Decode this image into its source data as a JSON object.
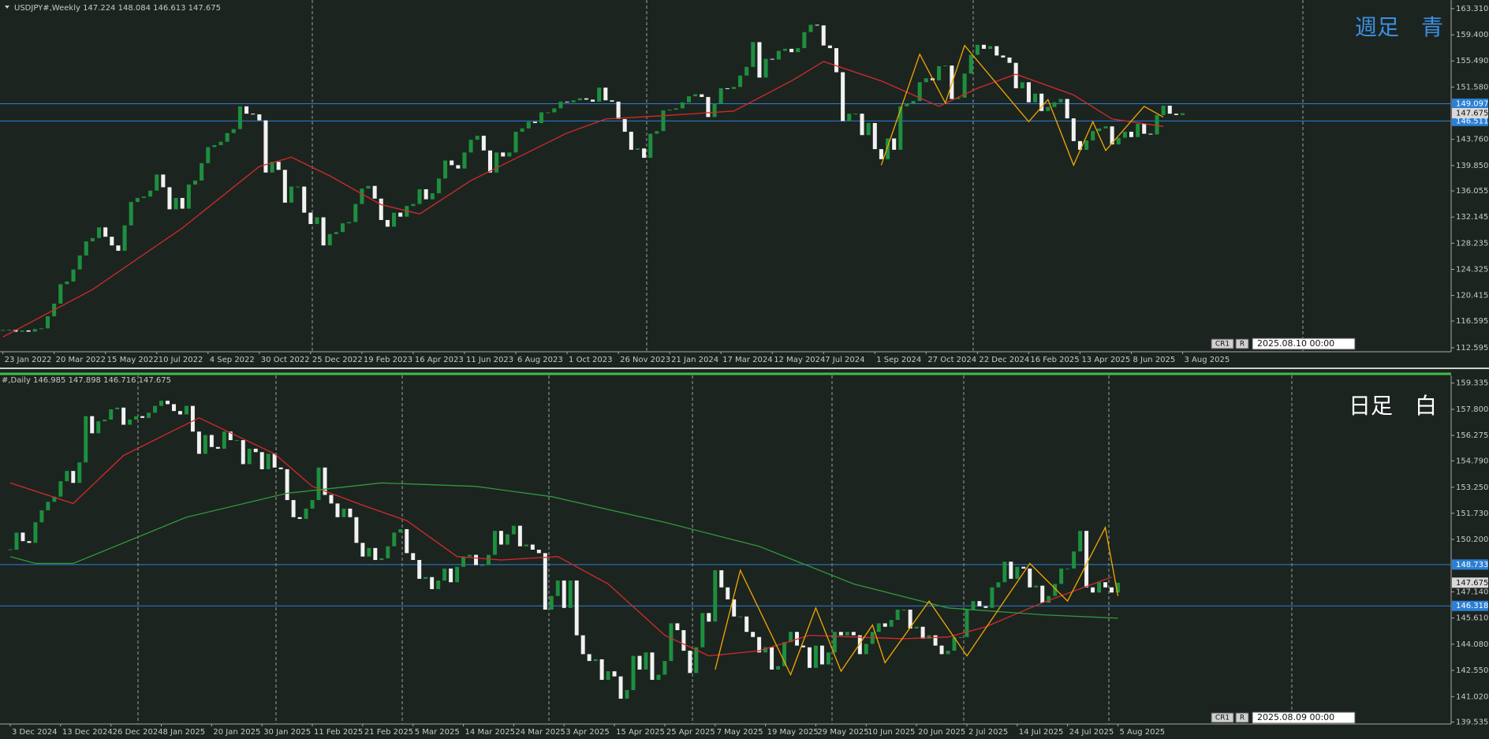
{
  "chart_data": [
    {
      "type": "candlestick",
      "title": "USDJPY#,Weekly  147.224 148.084 146.613 147.675",
      "badge": "週足　青",
      "badge_color": "#3d8fe0",
      "corner_labels": [
        "CR1",
        "R"
      ],
      "timestamp": "2025.08.10 00:00",
      "up_color": "#1d8f3e",
      "down_color": "#f2f2f2",
      "ylim": [
        112.0,
        164.6
      ],
      "yticks": [
        {
          "value": 163.31,
          "label": "163.310"
        },
        {
          "value": 159.4,
          "label": "159.400"
        },
        {
          "value": 155.49,
          "label": "155.490"
        },
        {
          "value": 151.58,
          "label": "151.580"
        },
        {
          "value": 143.76,
          "label": "143.760"
        },
        {
          "value": 139.85,
          "label": "139.850"
        },
        {
          "value": 136.055,
          "label": "136.055"
        },
        {
          "value": 132.145,
          "label": "132.145"
        },
        {
          "value": 128.235,
          "label": "128.235"
        },
        {
          "value": 124.325,
          "label": "124.325"
        },
        {
          "value": 120.415,
          "label": "120.415"
        },
        {
          "value": 116.595,
          "label": "116.595"
        },
        {
          "value": 112.595,
          "label": "112.595"
        }
      ],
      "categories": [
        "23 Jan 2022",
        null,
        null,
        null,
        null,
        null,
        null,
        null,
        "20 Mar 2022",
        null,
        null,
        null,
        null,
        null,
        null,
        null,
        "15 May 2022",
        null,
        null,
        null,
        null,
        null,
        null,
        null,
        "10 Jul 2022",
        null,
        null,
        null,
        null,
        null,
        null,
        null,
        "4 Sep 2022",
        null,
        null,
        null,
        null,
        null,
        null,
        null,
        "30 Oct 2022",
        null,
        null,
        null,
        null,
        null,
        null,
        null,
        "25 Dec 2022",
        null,
        null,
        null,
        null,
        null,
        null,
        null,
        "19 Feb 2023",
        null,
        null,
        null,
        null,
        null,
        null,
        null,
        "16 Apr 2023",
        null,
        null,
        null,
        null,
        null,
        null,
        null,
        "11 Jun 2023",
        null,
        null,
        null,
        null,
        null,
        null,
        null,
        "6 Aug 2023",
        null,
        null,
        null,
        null,
        null,
        null,
        null,
        "1 Oct 2023",
        null,
        null,
        null,
        null,
        null,
        null,
        null,
        "26 Nov 2023",
        null,
        null,
        null,
        null,
        null,
        null,
        null,
        "21 Jan 2024",
        null,
        null,
        null,
        null,
        null,
        null,
        null,
        "17 Mar 2024",
        null,
        null,
        null,
        null,
        null,
        null,
        null,
        "12 May 2024",
        null,
        null,
        null,
        null,
        null,
        null,
        null,
        "7 Jul 2024",
        null,
        null,
        null,
        null,
        null,
        null,
        null,
        "1 Sep 2024",
        null,
        null,
        null,
        null,
        null,
        null,
        null,
        "27 Oct 2024",
        null,
        null,
        null,
        null,
        null,
        null,
        null,
        "22 Dec 2024",
        null,
        null,
        null,
        null,
        null,
        null,
        null,
        "16 Feb 2025",
        null,
        null,
        null,
        null,
        null,
        null,
        null,
        "13 Apr 2025",
        null,
        null,
        null,
        null,
        null,
        null,
        null,
        "8 Jun 2025",
        null,
        null,
        null,
        null,
        null,
        null,
        null,
        "3 Aug 2025"
      ],
      "values": [
        115.2,
        115.3,
        115.0,
        115.2,
        115.0,
        115.4,
        115.5,
        117.3,
        119.2,
        122.1,
        122.5,
        124.3,
        126.4,
        128.5,
        129.0,
        130.6,
        129.2,
        127.9,
        127.1,
        130.9,
        134.4,
        135.0,
        135.2,
        136.1,
        138.5,
        136.6,
        133.3,
        135.0,
        133.4,
        137.0,
        137.6,
        140.2,
        142.6,
        142.9,
        143.4,
        144.7,
        145.3,
        148.7,
        147.6,
        147.5,
        146.6,
        138.8,
        140.4,
        139.2,
        134.3,
        136.7,
        136.7,
        132.8,
        131.1,
        132.1,
        127.9,
        129.6,
        129.9,
        131.2,
        131.4,
        134.1,
        136.4,
        136.8,
        134.9,
        131.7,
        130.7,
        132.8,
        132.2,
        133.8,
        134.1,
        136.3,
        134.8,
        135.7,
        137.9,
        140.6,
        139.9,
        139.4,
        141.8,
        143.7,
        144.3,
        142.1,
        138.8,
        141.8,
        141.2,
        141.8,
        144.9,
        145.4,
        146.4,
        146.2,
        147.8,
        147.8,
        148.4,
        149.4,
        149.3,
        149.6,
        149.9,
        149.7,
        149.4,
        151.5,
        149.6,
        149.4,
        146.8,
        144.9,
        142.2,
        142.4,
        141.0,
        144.6,
        145.0,
        148.1,
        148.2,
        148.4,
        149.3,
        150.2,
        150.5,
        150.1,
        147.1,
        149.1,
        151.4,
        151.3,
        151.6,
        153.3,
        154.6,
        158.3,
        153.0,
        155.8,
        155.7,
        157.0,
        157.3,
        156.8,
        157.4,
        159.8,
        160.9,
        160.8,
        157.8,
        157.4,
        153.8,
        146.5,
        147.6,
        147.6,
        144.4,
        146.2,
        142.3,
        140.8,
        143.9,
        142.2,
        148.7,
        149.1,
        149.5,
        152.3,
        152.9,
        152.6,
        154.7,
        154.8,
        149.8,
        150.0,
        153.6,
        156.4,
        157.9,
        157.3,
        157.7,
        156.3,
        156.0,
        155.2,
        151.4,
        152.3,
        149.3,
        150.6,
        148.0,
        148.6,
        149.3,
        149.8,
        146.9,
        143.5,
        142.2,
        143.6,
        145.0,
        145.4,
        145.7,
        143.0,
        144.0,
        144.9,
        144.1,
        146.1,
        144.6,
        144.5,
        147.4,
        148.8,
        147.6,
        147.4,
        147.675
      ],
      "lines": [
        {
          "color": "#d42a2a",
          "x": [
            0,
            14,
            28,
            40,
            45,
            51,
            59,
            65,
            73,
            88,
            94,
            103,
            114,
            123,
            128,
            137,
            146,
            152,
            158,
            167,
            173,
            181
          ],
          "values": [
            114.2,
            121.3,
            130.5,
            139.7,
            141.1,
            138.3,
            134.0,
            132.6,
            137.6,
            144.7,
            146.8,
            147.3,
            148.0,
            152.5,
            155.4,
            152.5,
            148.7,
            151.4,
            153.5,
            150.4,
            146.8,
            145.7
          ]
        },
        {
          "color": "#f5a800",
          "x": [
            137,
            143,
            147,
            150,
            160,
            163,
            167,
            170,
            172,
            178,
            181
          ],
          "values": [
            139.9,
            156.5,
            149.2,
            157.8,
            146.4,
            149.7,
            139.9,
            146.4,
            142.1,
            148.7,
            147.1
          ]
        }
      ],
      "hlines": [
        {
          "value": 149.097,
          "label": "149.097",
          "color": "#2b7fd4"
        },
        {
          "value": 146.511,
          "label": "146.511",
          "color": "#2b7fd4"
        }
      ],
      "last": {
        "value": 147.675,
        "label": "147.675"
      }
    },
    {
      "type": "candlestick",
      "title": "#,Daily  146.985 147.898 146.716 147.675",
      "badge": "日足　白",
      "badge_color": "#ffffff",
      "corner_labels": [
        "CR1",
        "R"
      ],
      "timestamp": "2025.08.09 00:00",
      "up_color": "#1d8f3e",
      "down_color": "#f2f2f2",
      "ylim": [
        139.42,
        159.78
      ],
      "yticks": [
        {
          "value": 159.335,
          "label": "159.335"
        },
        {
          "value": 157.8,
          "label": "157.800"
        },
        {
          "value": 156.275,
          "label": "156.275"
        },
        {
          "value": 154.79,
          "label": "154.790"
        },
        {
          "value": 153.25,
          "label": "153.250"
        },
        {
          "value": 151.73,
          "label": "151.730"
        },
        {
          "value": 150.2,
          "label": "150.200"
        },
        {
          "value": 147.14,
          "label": "147.140"
        },
        {
          "value": 145.61,
          "label": "145.610"
        },
        {
          "value": 144.08,
          "label": "144.080"
        },
        {
          "value": 142.55,
          "label": "142.550"
        },
        {
          "value": 141.02,
          "label": "141.020"
        },
        {
          "value": 139.535,
          "label": "139.535"
        }
      ],
      "categories": [
        "3 Dec 2024",
        null,
        null,
        null,
        null,
        null,
        null,
        null,
        "13 Dec 2024",
        null,
        null,
        null,
        null,
        null,
        null,
        null,
        "26 Dec 2024",
        null,
        null,
        null,
        null,
        null,
        null,
        null,
        "8 Jan 2025",
        null,
        null,
        null,
        null,
        null,
        null,
        null,
        "20 Jan 2025",
        null,
        null,
        null,
        null,
        null,
        null,
        null,
        "30 Jan 2025",
        null,
        null,
        null,
        null,
        null,
        null,
        null,
        "11 Feb 2025",
        null,
        null,
        null,
        null,
        null,
        null,
        null,
        "21 Feb 2025",
        null,
        null,
        null,
        null,
        null,
        null,
        null,
        "5 Mar 2025",
        null,
        null,
        null,
        null,
        null,
        null,
        null,
        "14 Mar 2025",
        null,
        null,
        null,
        null,
        null,
        null,
        null,
        "24 Mar 2025",
        null,
        null,
        null,
        null,
        null,
        null,
        null,
        "3 Apr 2025",
        null,
        null,
        null,
        null,
        null,
        null,
        null,
        "15 Apr 2025",
        null,
        null,
        null,
        null,
        null,
        null,
        null,
        "25 Apr 2025",
        null,
        null,
        null,
        null,
        null,
        null,
        null,
        "7 May 2025",
        null,
        null,
        null,
        null,
        null,
        null,
        null,
        "19 May 2025",
        null,
        null,
        null,
        null,
        null,
        null,
        null,
        "29 May 2025",
        null,
        null,
        null,
        null,
        null,
        null,
        null,
        "10 Jun 2025",
        null,
        null,
        null,
        null,
        null,
        null,
        null,
        "20 Jun 2025",
        null,
        null,
        null,
        null,
        null,
        null,
        null,
        "2 Jul 2025",
        null,
        null,
        null,
        null,
        null,
        null,
        null,
        "14 Jul 2025",
        null,
        null,
        null,
        null,
        null,
        null,
        null,
        "24 Jul 2025",
        null,
        null,
        null,
        null,
        null,
        null,
        null,
        "5 Aug 2025"
      ],
      "values": [
        149.6,
        150.6,
        150.1,
        150.0,
        151.2,
        151.9,
        152.4,
        152.7,
        153.6,
        154.2,
        153.5,
        154.7,
        157.4,
        156.4,
        157.1,
        157.2,
        157.8,
        157.9,
        156.9,
        157.2,
        157.4,
        157.3,
        157.6,
        158.0,
        158.3,
        158.1,
        157.7,
        157.5,
        158.0,
        156.5,
        155.2,
        156.3,
        155.6,
        155.5,
        156.5,
        156.0,
        156.0,
        154.6,
        155.5,
        155.3,
        154.3,
        155.2,
        154.4,
        154.3,
        152.5,
        151.5,
        151.4,
        152.0,
        152.5,
        154.4,
        152.8,
        152.3,
        151.5,
        152.0,
        151.5,
        150.0,
        149.2,
        149.7,
        149.0,
        149.1,
        149.8,
        150.6,
        150.8,
        149.4,
        149.0,
        147.9,
        148.0,
        147.3,
        147.8,
        148.5,
        147.7,
        148.6,
        149.2,
        149.3,
        148.7,
        148.7,
        149.3,
        150.7,
        149.9,
        150.5,
        151.0,
        149.8,
        149.9,
        149.6,
        149.4,
        146.1,
        146.9,
        147.8,
        146.2,
        147.8,
        144.6,
        143.5,
        143.1,
        143.2,
        142.0,
        142.5,
        142.2,
        140.9,
        141.4,
        143.4,
        142.6,
        143.6,
        142.0,
        142.3,
        143.1,
        145.3,
        144.9,
        143.7,
        142.4,
        143.9,
        145.9,
        145.4,
        148.4,
        147.4,
        146.7,
        145.7,
        145.7,
        144.8,
        144.5,
        143.6,
        143.9,
        142.6,
        142.8,
        144.2,
        144.8,
        144.0,
        143.9,
        142.7,
        144.0,
        142.9,
        143.6,
        144.8,
        144.6,
        144.8,
        144.6,
        143.5,
        144.1,
        144.8,
        145.3,
        145.1,
        145.5,
        146.1,
        146.1,
        145.0,
        145.1,
        144.4,
        144.6,
        144.0,
        143.5,
        143.7,
        144.5,
        144.5,
        146.1,
        146.6,
        146.3,
        146.2,
        147.4,
        147.7,
        148.9,
        147.9,
        148.6,
        148.5,
        147.4,
        147.5,
        146.5,
        146.9,
        147.6,
        148.5,
        148.5,
        149.5,
        150.7,
        147.4,
        147.1,
        147.7,
        147.4,
        147.1,
        147.675
      ],
      "lines": [
        {
          "color": "#d42a2a",
          "x": [
            0,
            10,
            18,
            30,
            42,
            48,
            56,
            63,
            71,
            78,
            87,
            95,
            104,
            111,
            119,
            127,
            134,
            142,
            149,
            155,
            164,
            175
          ],
          "values": [
            153.5,
            152.3,
            155.1,
            157.3,
            155.2,
            153.3,
            152.2,
            151.3,
            149.2,
            149.0,
            149.2,
            147.6,
            144.6,
            143.4,
            143.7,
            144.6,
            144.5,
            144.4,
            144.5,
            145.1,
            146.5,
            148.0
          ]
        },
        {
          "color": "#2e9a3a",
          "x": [
            0,
            4,
            10,
            28,
            44,
            59,
            74,
            86,
            104,
            119,
            134,
            149,
            164,
            176
          ],
          "values": [
            149.2,
            148.8,
            148.8,
            151.5,
            152.9,
            153.5,
            153.3,
            152.7,
            151.2,
            149.8,
            147.6,
            146.2,
            145.8,
            145.6
          ]
        },
        {
          "color": "#f5a800",
          "x": [
            112,
            116,
            124,
            128,
            132,
            137,
            139,
            146,
            152,
            162,
            168,
            174,
            176
          ],
          "values": [
            142.6,
            148.4,
            142.3,
            146.2,
            142.5,
            145.2,
            143.0,
            146.6,
            143.4,
            148.8,
            146.6,
            150.9,
            146.9
          ]
        }
      ],
      "hlines": [
        {
          "value": 148.733,
          "label": "148.733",
          "color": "#2b7fd4"
        },
        {
          "value": 146.318,
          "label": "146.318",
          "color": "#2b7fd4"
        }
      ],
      "last": {
        "value": 147.675,
        "label": "147.675"
      }
    }
  ]
}
